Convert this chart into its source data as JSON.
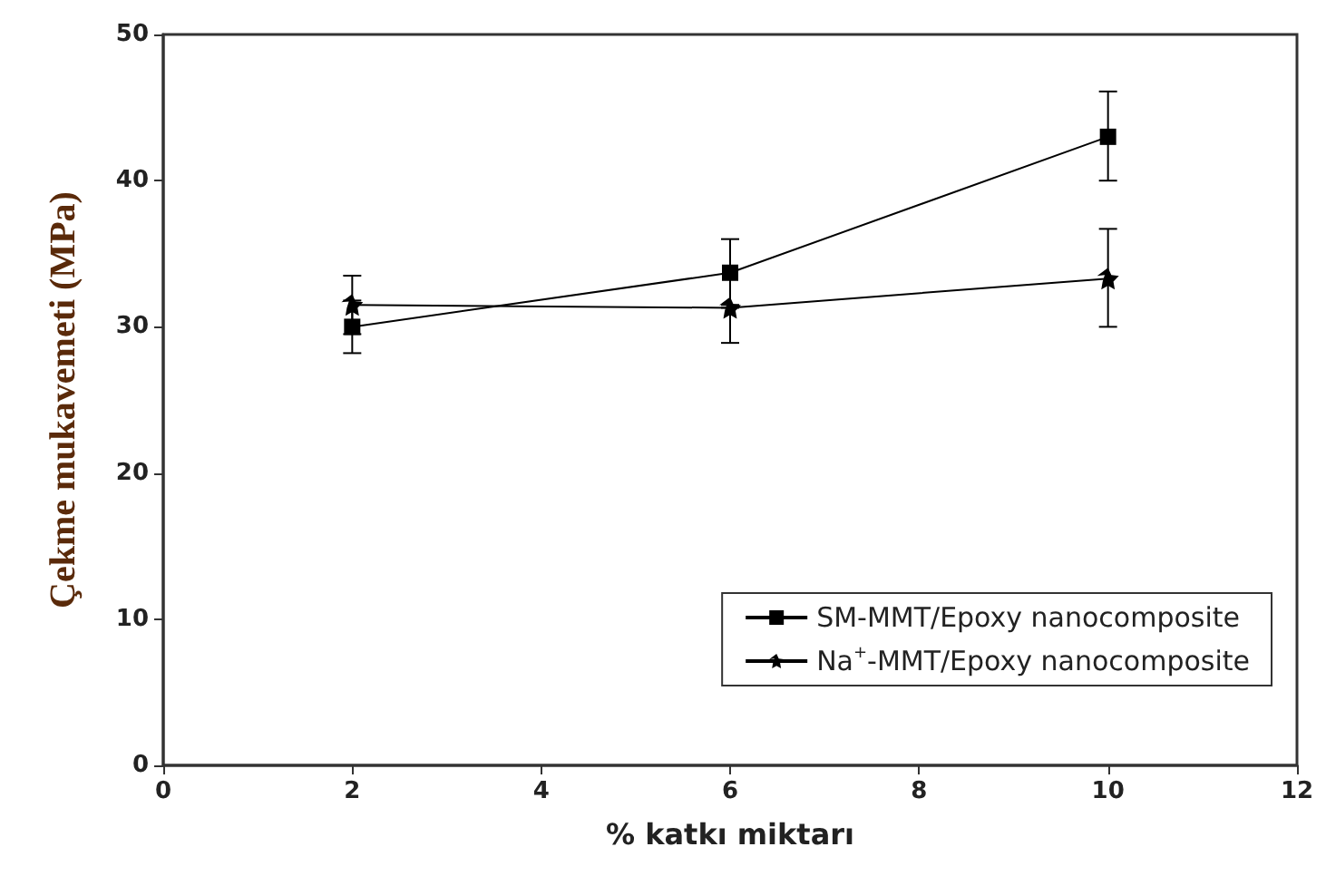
{
  "chart_data": {
    "type": "line",
    "xlabel": "% katkı miktarı",
    "ylabel": "Çekme mukavemeti (MPa)",
    "x": [
      2,
      6,
      10
    ],
    "series": [
      {
        "name": "SM-MMT/Epoxy nanocomposite",
        "color": "#000000",
        "marker": "square",
        "values": [
          30.0,
          33.7,
          43.0
        ],
        "errors": [
          [
            28.2,
            31.8
          ],
          [
            31.5,
            36.0
          ],
          [
            40.0,
            46.1
          ]
        ]
      },
      {
        "name": "Na$^{+}$-MMT/Epoxy nanocomposite",
        "color": "#000000",
        "marker": "star",
        "values": [
          31.5,
          31.3,
          33.3
        ],
        "errors": [
          [
            29.5,
            33.5
          ],
          [
            28.9,
            31.3
          ],
          [
            30.0,
            36.7
          ]
        ]
      }
    ],
    "xlim": [
      0,
      12
    ],
    "xticks": [
      0,
      2,
      4,
      6,
      8,
      10,
      12
    ],
    "ylim": [
      0,
      50
    ],
    "yticks": [
      0,
      10,
      20,
      30,
      40,
      50
    ],
    "grid": false,
    "legend": "bottom right",
    "line_style": "solid"
  }
}
